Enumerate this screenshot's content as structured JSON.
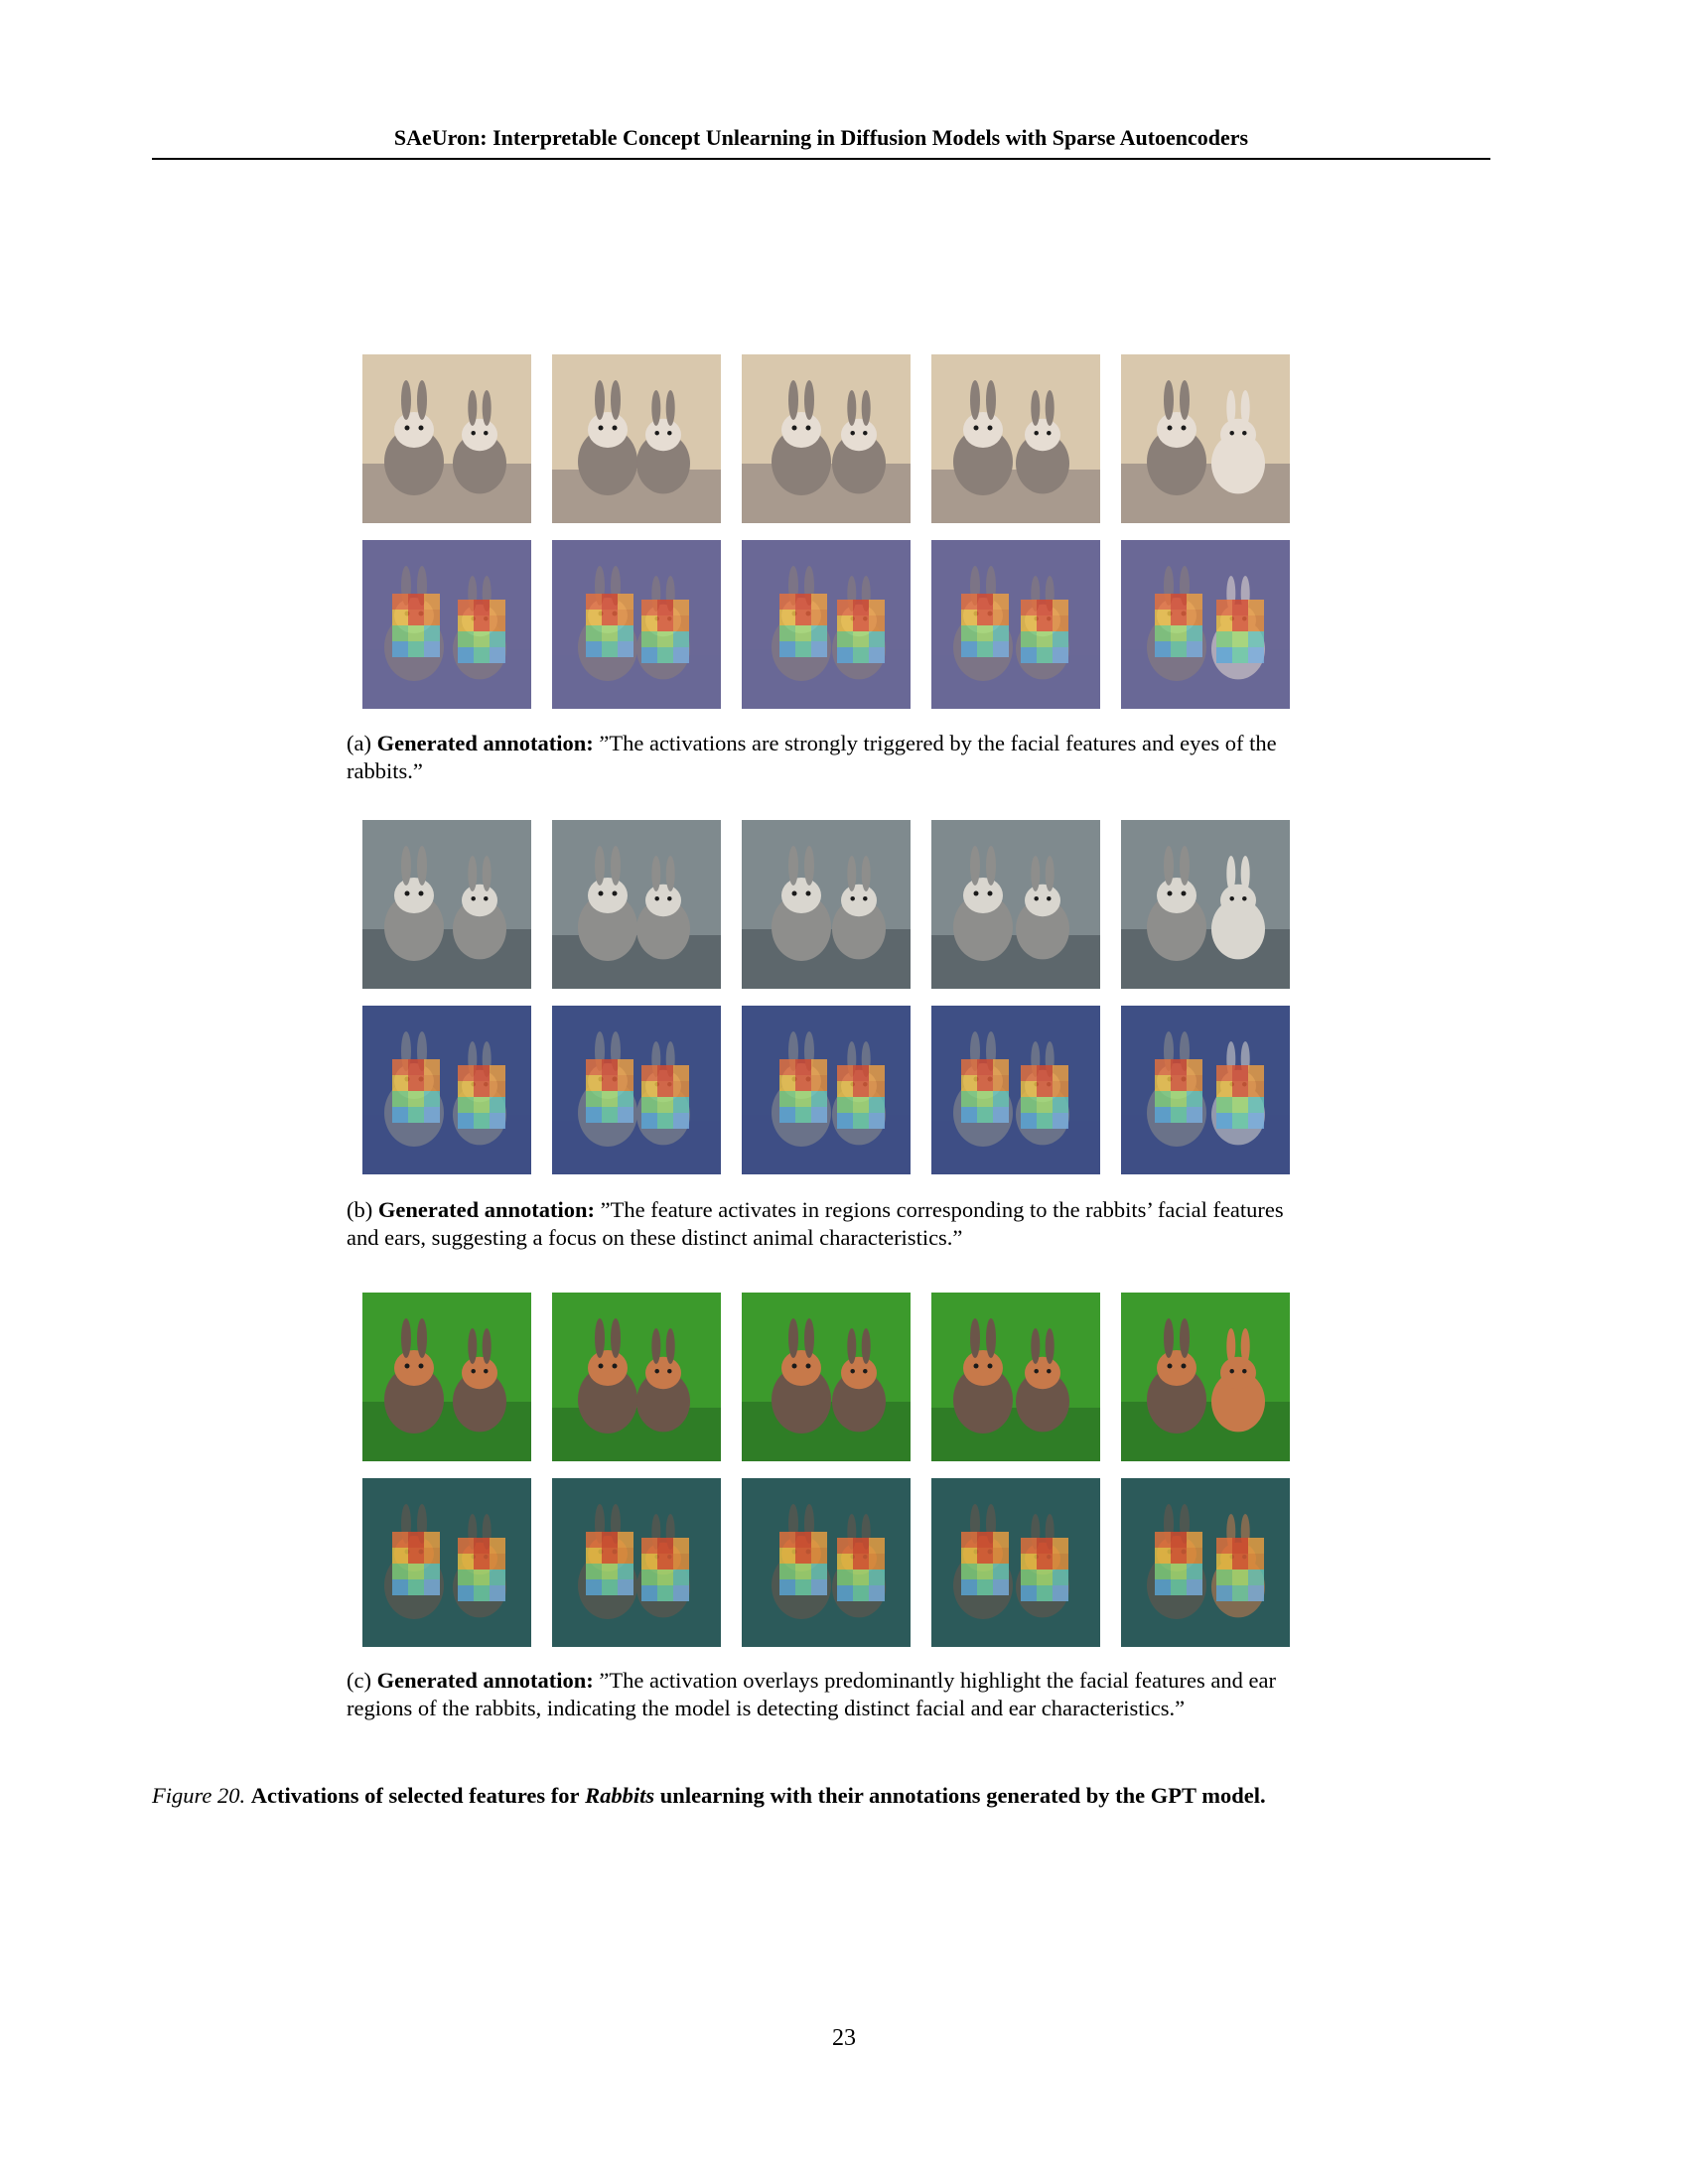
{
  "header": {
    "running_title": "SAeUron: Interpretable Concept Unlearning in Diffusion Models with Sparse Autoencoders"
  },
  "figure": {
    "panels": [
      {
        "label": "(a)",
        "annotation_label": "Generated annotation:",
        "annotation_text": "”The activations are strongly triggered by the facial features and eyes of the rabbits.”",
        "style": "sepia",
        "colors": {
          "bg": "#d9c8ad",
          "ground": "#a89a8e",
          "rabbit": "#8a7f78",
          "rabbit_light": "#e6ddd3",
          "overlay_bg": "#6a6896"
        }
      },
      {
        "label": "(b)",
        "annotation_label": "Generated annotation:",
        "annotation_text": "”The feature activates in regions corresponding to the rabbits’ facial features and ears, suggesting a focus on these distinct animal characteristics.”",
        "style": "grey-blue",
        "colors": {
          "bg": "#7f8a8e",
          "ground": "#5d676c",
          "rabbit": "#8e8e8c",
          "rabbit_light": "#d9d6cf",
          "overlay_bg": "#3f4f86"
        }
      },
      {
        "label": "(c)",
        "annotation_label": "Generated annotation:",
        "annotation_text": "”The activation overlays predominantly highlight the facial features and ear regions of the rabbits, indicating the model is detecting distinct facial and ear characteristics.”",
        "style": "green",
        "colors": {
          "bg": "#3c9a2c",
          "ground": "#2f7d26",
          "rabbit": "#6b5549",
          "rabbit_light": "#c7794a",
          "overlay_bg": "#2c5a5a"
        }
      }
    ],
    "caption": {
      "label": "Figure 20.",
      "text_before": "Activations of selected features for",
      "emphasis": "Rabbits",
      "text_after": "unlearning with their annotations generated by the GPT model."
    }
  },
  "page_number": "23"
}
